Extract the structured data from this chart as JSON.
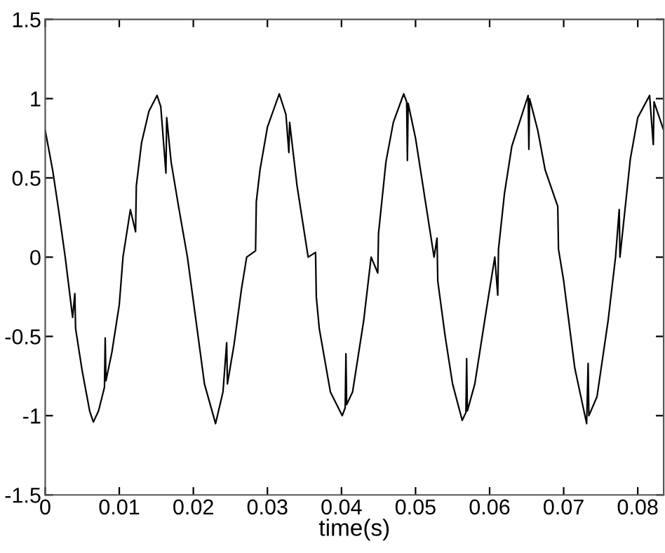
{
  "chart_data": {
    "type": "line",
    "xlabel": "time(s)",
    "x": [
      0,
      0.001,
      0.0018,
      0.0027,
      0.0037,
      0.004,
      0.0041,
      0.005,
      0.006,
      0.0065,
      0.0072,
      0.008,
      0.0081,
      0.0082,
      0.009,
      0.01,
      0.0105,
      0.0115,
      0.0122,
      0.0123,
      0.013,
      0.014,
      0.0151,
      0.0156,
      0.0163,
      0.0164,
      0.017,
      0.018,
      0.0192,
      0.0205,
      0.0215,
      0.023,
      0.024,
      0.0245,
      0.0246,
      0.0255,
      0.0265,
      0.0272,
      0.0284,
      0.0285,
      0.029,
      0.03,
      0.0316,
      0.0325,
      0.0329,
      0.033,
      0.034,
      0.0355,
      0.0365,
      0.0366,
      0.037,
      0.0385,
      0.0401,
      0.0405,
      0.0406,
      0.0407,
      0.0415,
      0.043,
      0.044,
      0.0449,
      0.045,
      0.046,
      0.047,
      0.0484,
      0.0488,
      0.0489,
      0.049,
      0.05,
      0.0515,
      0.0525,
      0.0529,
      0.053,
      0.054,
      0.055,
      0.0563,
      0.0568,
      0.0569,
      0.057,
      0.058,
      0.0595,
      0.0607,
      0.0611,
      0.0612,
      0.062,
      0.063,
      0.0652,
      0.0653,
      0.0654,
      0.0665,
      0.0675,
      0.0692,
      0.0693,
      0.07,
      0.0715,
      0.0731,
      0.0733,
      0.0734,
      0.0745,
      0.076,
      0.077,
      0.0775,
      0.0776,
      0.079,
      0.08,
      0.0816,
      0.0821,
      0.0822,
      0.0835
    ],
    "series": [
      {
        "color": "#000000",
        "values": [
          0.8,
          0.55,
          0.3,
          0.0,
          -0.38,
          -0.23,
          -0.45,
          -0.72,
          -0.97,
          -1.04,
          -0.97,
          -0.82,
          -0.51,
          -0.78,
          -0.6,
          -0.3,
          0.0,
          0.3,
          0.16,
          0.45,
          0.72,
          0.92,
          1.02,
          0.95,
          0.53,
          0.88,
          0.6,
          0.32,
          0.0,
          -0.45,
          -0.8,
          -1.05,
          -0.85,
          -0.54,
          -0.8,
          -0.55,
          -0.2,
          0.0,
          0.04,
          0.35,
          0.55,
          0.82,
          1.03,
          0.9,
          0.66,
          0.85,
          0.45,
          0.0,
          0.03,
          -0.25,
          -0.45,
          -0.85,
          -1.0,
          -0.95,
          -0.61,
          -0.93,
          -0.85,
          -0.4,
          0.0,
          -0.1,
          0.15,
          0.6,
          0.85,
          1.03,
          0.98,
          0.61,
          0.97,
          0.75,
          0.3,
          0.0,
          0.12,
          -0.15,
          -0.5,
          -0.8,
          -1.03,
          -0.98,
          -0.64,
          -0.97,
          -0.8,
          -0.35,
          0.0,
          -0.24,
          0.05,
          0.4,
          0.7,
          1.02,
          0.68,
          1.0,
          0.8,
          0.55,
          0.32,
          0.05,
          -0.15,
          -0.7,
          -1.05,
          -0.67,
          -1.0,
          -0.88,
          -0.4,
          0.0,
          0.3,
          0.0,
          0.62,
          0.88,
          1.02,
          0.71,
          0.98,
          0.8
        ]
      }
    ],
    "xlim": [
      0,
      0.0835
    ],
    "ylim": [
      -1.5,
      1.5
    ],
    "xticks": [
      0,
      0.01,
      0.02,
      0.03,
      0.04,
      0.05,
      0.06,
      0.07,
      0.08
    ],
    "yticks": [
      -1.5,
      -1,
      -0.5,
      0,
      0.5,
      1,
      1.5
    ],
    "grid": false,
    "marker": "none",
    "line_style": "solid"
  }
}
